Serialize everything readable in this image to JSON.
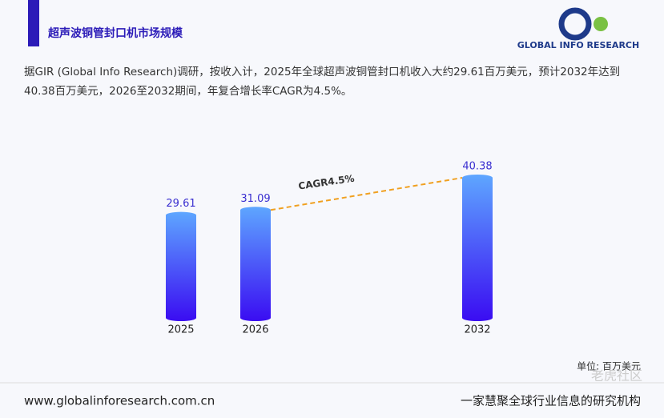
{
  "header": {
    "title": "超声波铜管封口机市场规模",
    "logo": "GLOBAL INFO RESEARCH"
  },
  "description": "据GIR (Global Info Research)调研，按收入计，2025年全球超声波铜管封口机收入大约29.61百万美元，预计2032年达到40.38百万美元，2026至2032期间，年复合增长率CAGR为4.5%。",
  "chart_data": {
    "type": "bar",
    "categories": [
      "2025",
      "2026",
      "2032"
    ],
    "values": [
      29.61,
      31.09,
      40.38
    ],
    "annotation": "CAGR4.5%",
    "unit": "单位: 百万美元",
    "color_top": "#5ea6ff",
    "color_bottom": "#3a0cf2",
    "label_color": "#3a2fd0",
    "trend_color": "#f0a020"
  },
  "footer": {
    "url": "www.globalinforesearch.com.cn",
    "slogan": "一家慧聚全球行业信息的研究机构",
    "watermark": "老虎社区"
  }
}
